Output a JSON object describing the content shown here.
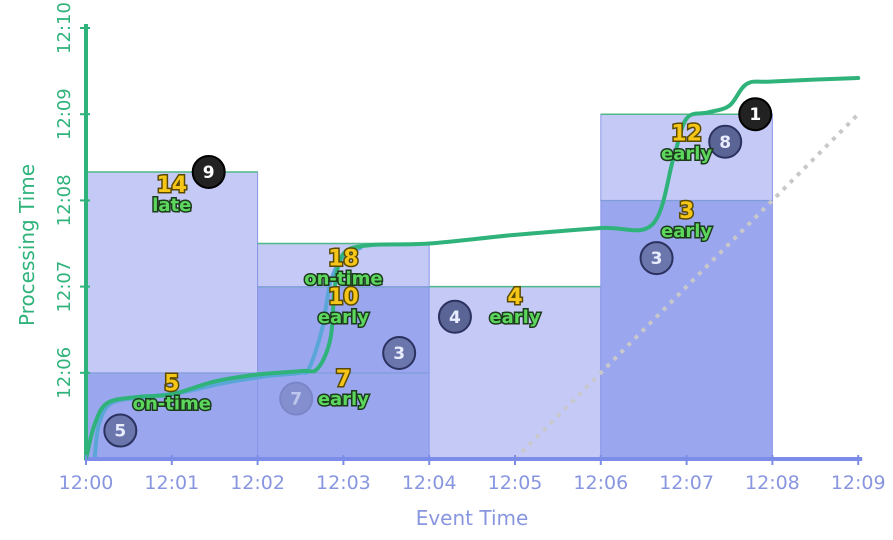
{
  "chart_data": {
    "type": "scatter",
    "xlabel": "Event Time",
    "ylabel": "Processing Time",
    "x_ticks": [
      "12:00",
      "12:01",
      "12:02",
      "12:03",
      "12:04",
      "12:05",
      "12:06",
      "12:07",
      "12:08",
      "12:09"
    ],
    "y_ticks": [
      "12:06",
      "12:07",
      "12:08",
      "12:09",
      "12:10"
    ],
    "x_range_minutes": [
      0,
      9
    ],
    "y_range_minutes": [
      5,
      10
    ],
    "colors": {
      "pane_light": "#c4c9f5",
      "pane_dark": "#9aa6ee",
      "pane_stroke": "#4fb98a",
      "pane_edge": "#8a97e8",
      "watermark_curve": "#2fb37b",
      "processing_curve": "#5aa6d6",
      "ideal_diagonal": "#c8c8cc",
      "circle_fill": "#5b6595",
      "circle_dark": "#222222",
      "x_axis": "#7b8de8",
      "y_axis": "#2fb37b"
    },
    "windows": [
      {
        "x_start": 0,
        "x_end": 2,
        "panes": [
          {
            "y_start": 5,
            "y_end": 6,
            "tone": "dark"
          },
          {
            "y_start": 6,
            "y_end": 8.33,
            "tone": "light"
          }
        ]
      },
      {
        "x_start": 2,
        "x_end": 4,
        "panes": [
          {
            "y_start": 5,
            "y_end": 6,
            "tone": "dark"
          },
          {
            "y_start": 6,
            "y_end": 7,
            "tone": "dark"
          },
          {
            "y_start": 7,
            "y_end": 7.5,
            "tone": "light"
          }
        ]
      },
      {
        "x_start": 4,
        "x_end": 6,
        "panes": [
          {
            "y_start": 5,
            "y_end": 7,
            "tone": "light"
          }
        ]
      },
      {
        "x_start": 6,
        "x_end": 8,
        "panes": [
          {
            "y_start": 5,
            "y_end": 8,
            "tone": "dark"
          },
          {
            "y_start": 8,
            "y_end": 9,
            "tone": "light"
          }
        ]
      }
    ],
    "events": [
      {
        "value": "5",
        "x": 0.4,
        "y": 5.33,
        "style": "faded"
      },
      {
        "value": "9",
        "x": 1.43,
        "y": 8.33,
        "style": "dark"
      },
      {
        "value": "7",
        "x": 2.45,
        "y": 5.7,
        "style": "ghost"
      },
      {
        "value": "3",
        "x": 3.65,
        "y": 6.23,
        "style": "faded"
      },
      {
        "value": "4",
        "x": 4.3,
        "y": 6.65,
        "style": "solid"
      },
      {
        "value": "3",
        "x": 6.65,
        "y": 7.33,
        "style": "faded"
      },
      {
        "value": "8",
        "x": 7.45,
        "y": 8.68,
        "style": "solid"
      },
      {
        "value": "1",
        "x": 7.8,
        "y": 9.0,
        "style": "dark"
      }
    ],
    "watermark": [
      [
        0,
        5
      ],
      [
        0.1,
        5.4
      ],
      [
        0.25,
        5.65
      ],
      [
        0.6,
        5.72
      ],
      [
        1.0,
        5.75
      ],
      [
        1.5,
        5.9
      ],
      [
        2.0,
        5.98
      ],
      [
        2.5,
        6.02
      ],
      [
        2.7,
        6.05
      ],
      [
        2.85,
        6.4
      ],
      [
        2.9,
        7.0
      ],
      [
        3.0,
        7.38
      ],
      [
        3.3,
        7.48
      ],
      [
        4.0,
        7.5
      ],
      [
        5.0,
        7.6
      ],
      [
        6.0,
        7.68
      ],
      [
        6.6,
        7.72
      ],
      [
        6.85,
        8.5
      ],
      [
        7.0,
        8.95
      ],
      [
        7.25,
        9.02
      ],
      [
        7.5,
        9.1
      ],
      [
        7.7,
        9.35
      ],
      [
        8.0,
        9.38
      ],
      [
        9.0,
        9.42
      ]
    ],
    "processing_curve": [
      [
        0.1,
        5
      ],
      [
        0.15,
        5.4
      ],
      [
        0.3,
        5.65
      ],
      [
        0.7,
        5.72
      ],
      [
        1.1,
        5.77
      ],
      [
        1.6,
        5.88
      ],
      [
        2.1,
        5.96
      ],
      [
        2.5,
        6.0
      ],
      [
        2.6,
        6.05
      ],
      [
        2.75,
        6.5
      ],
      [
        2.85,
        7.05
      ],
      [
        3.0,
        7.35
      ],
      [
        3.2,
        7.45
      ]
    ],
    "ideal_line": [
      [
        5.0,
        5.0
      ],
      [
        9.0,
        9.0
      ]
    ],
    "annotations": [
      {
        "value": "5",
        "label": "on-time",
        "x": 1.0,
        "y": 5.75
      },
      {
        "value": "14",
        "label": "late",
        "x": 1.0,
        "y": 8.05
      },
      {
        "value": "18",
        "label": "on-time",
        "x": 3.0,
        "y": 7.2
      },
      {
        "value": "10",
        "label": "early",
        "x": 3.0,
        "y": 6.75
      },
      {
        "value": "7",
        "label": "early",
        "x": 3.0,
        "y": 5.8
      },
      {
        "value": "4",
        "label": "early",
        "x": 5.0,
        "y": 6.75
      },
      {
        "value": "3",
        "label": "early",
        "x": 7.0,
        "y": 7.75
      },
      {
        "value": "12",
        "label": "early",
        "x": 7.0,
        "y": 8.65
      }
    ]
  }
}
